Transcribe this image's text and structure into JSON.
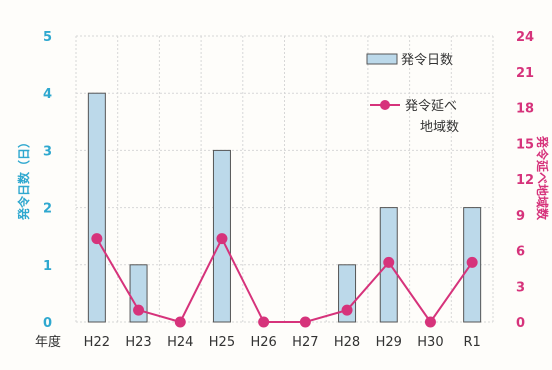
{
  "chart_data": {
    "type": "bar+line",
    "x_axis_label": "年度",
    "categories": [
      "H22",
      "H23",
      "H24",
      "H25",
      "H26",
      "H27",
      "H28",
      "H29",
      "H30",
      "R1"
    ],
    "left_axis": {
      "label": "発令日数（日）",
      "ylim": [
        0,
        5
      ],
      "ticks": [
        0,
        1,
        2,
        3,
        4,
        5
      ],
      "color": "#2fa8cf"
    },
    "right_axis": {
      "label": "発令延べ地域数",
      "ylim": [
        0,
        24
      ],
      "ticks": [
        0,
        3,
        6,
        9,
        12,
        15,
        18,
        21,
        24
      ],
      "color": "#d6337b"
    },
    "series": [
      {
        "name": "発令日数",
        "type": "bar",
        "axis": "left",
        "values": [
          4,
          1,
          0,
          3,
          0,
          0,
          1,
          2,
          0,
          2
        ],
        "color": "#bcd9ea"
      },
      {
        "name": "発令延べ地域数",
        "legend_lines": [
          "発令延べ",
          "地域数"
        ],
        "type": "line",
        "axis": "right",
        "values": [
          7,
          1,
          0,
          7,
          0,
          0,
          1,
          5,
          0,
          5
        ],
        "color": "#d6337b"
      }
    ],
    "grid": true,
    "legend_position": "top-right"
  }
}
